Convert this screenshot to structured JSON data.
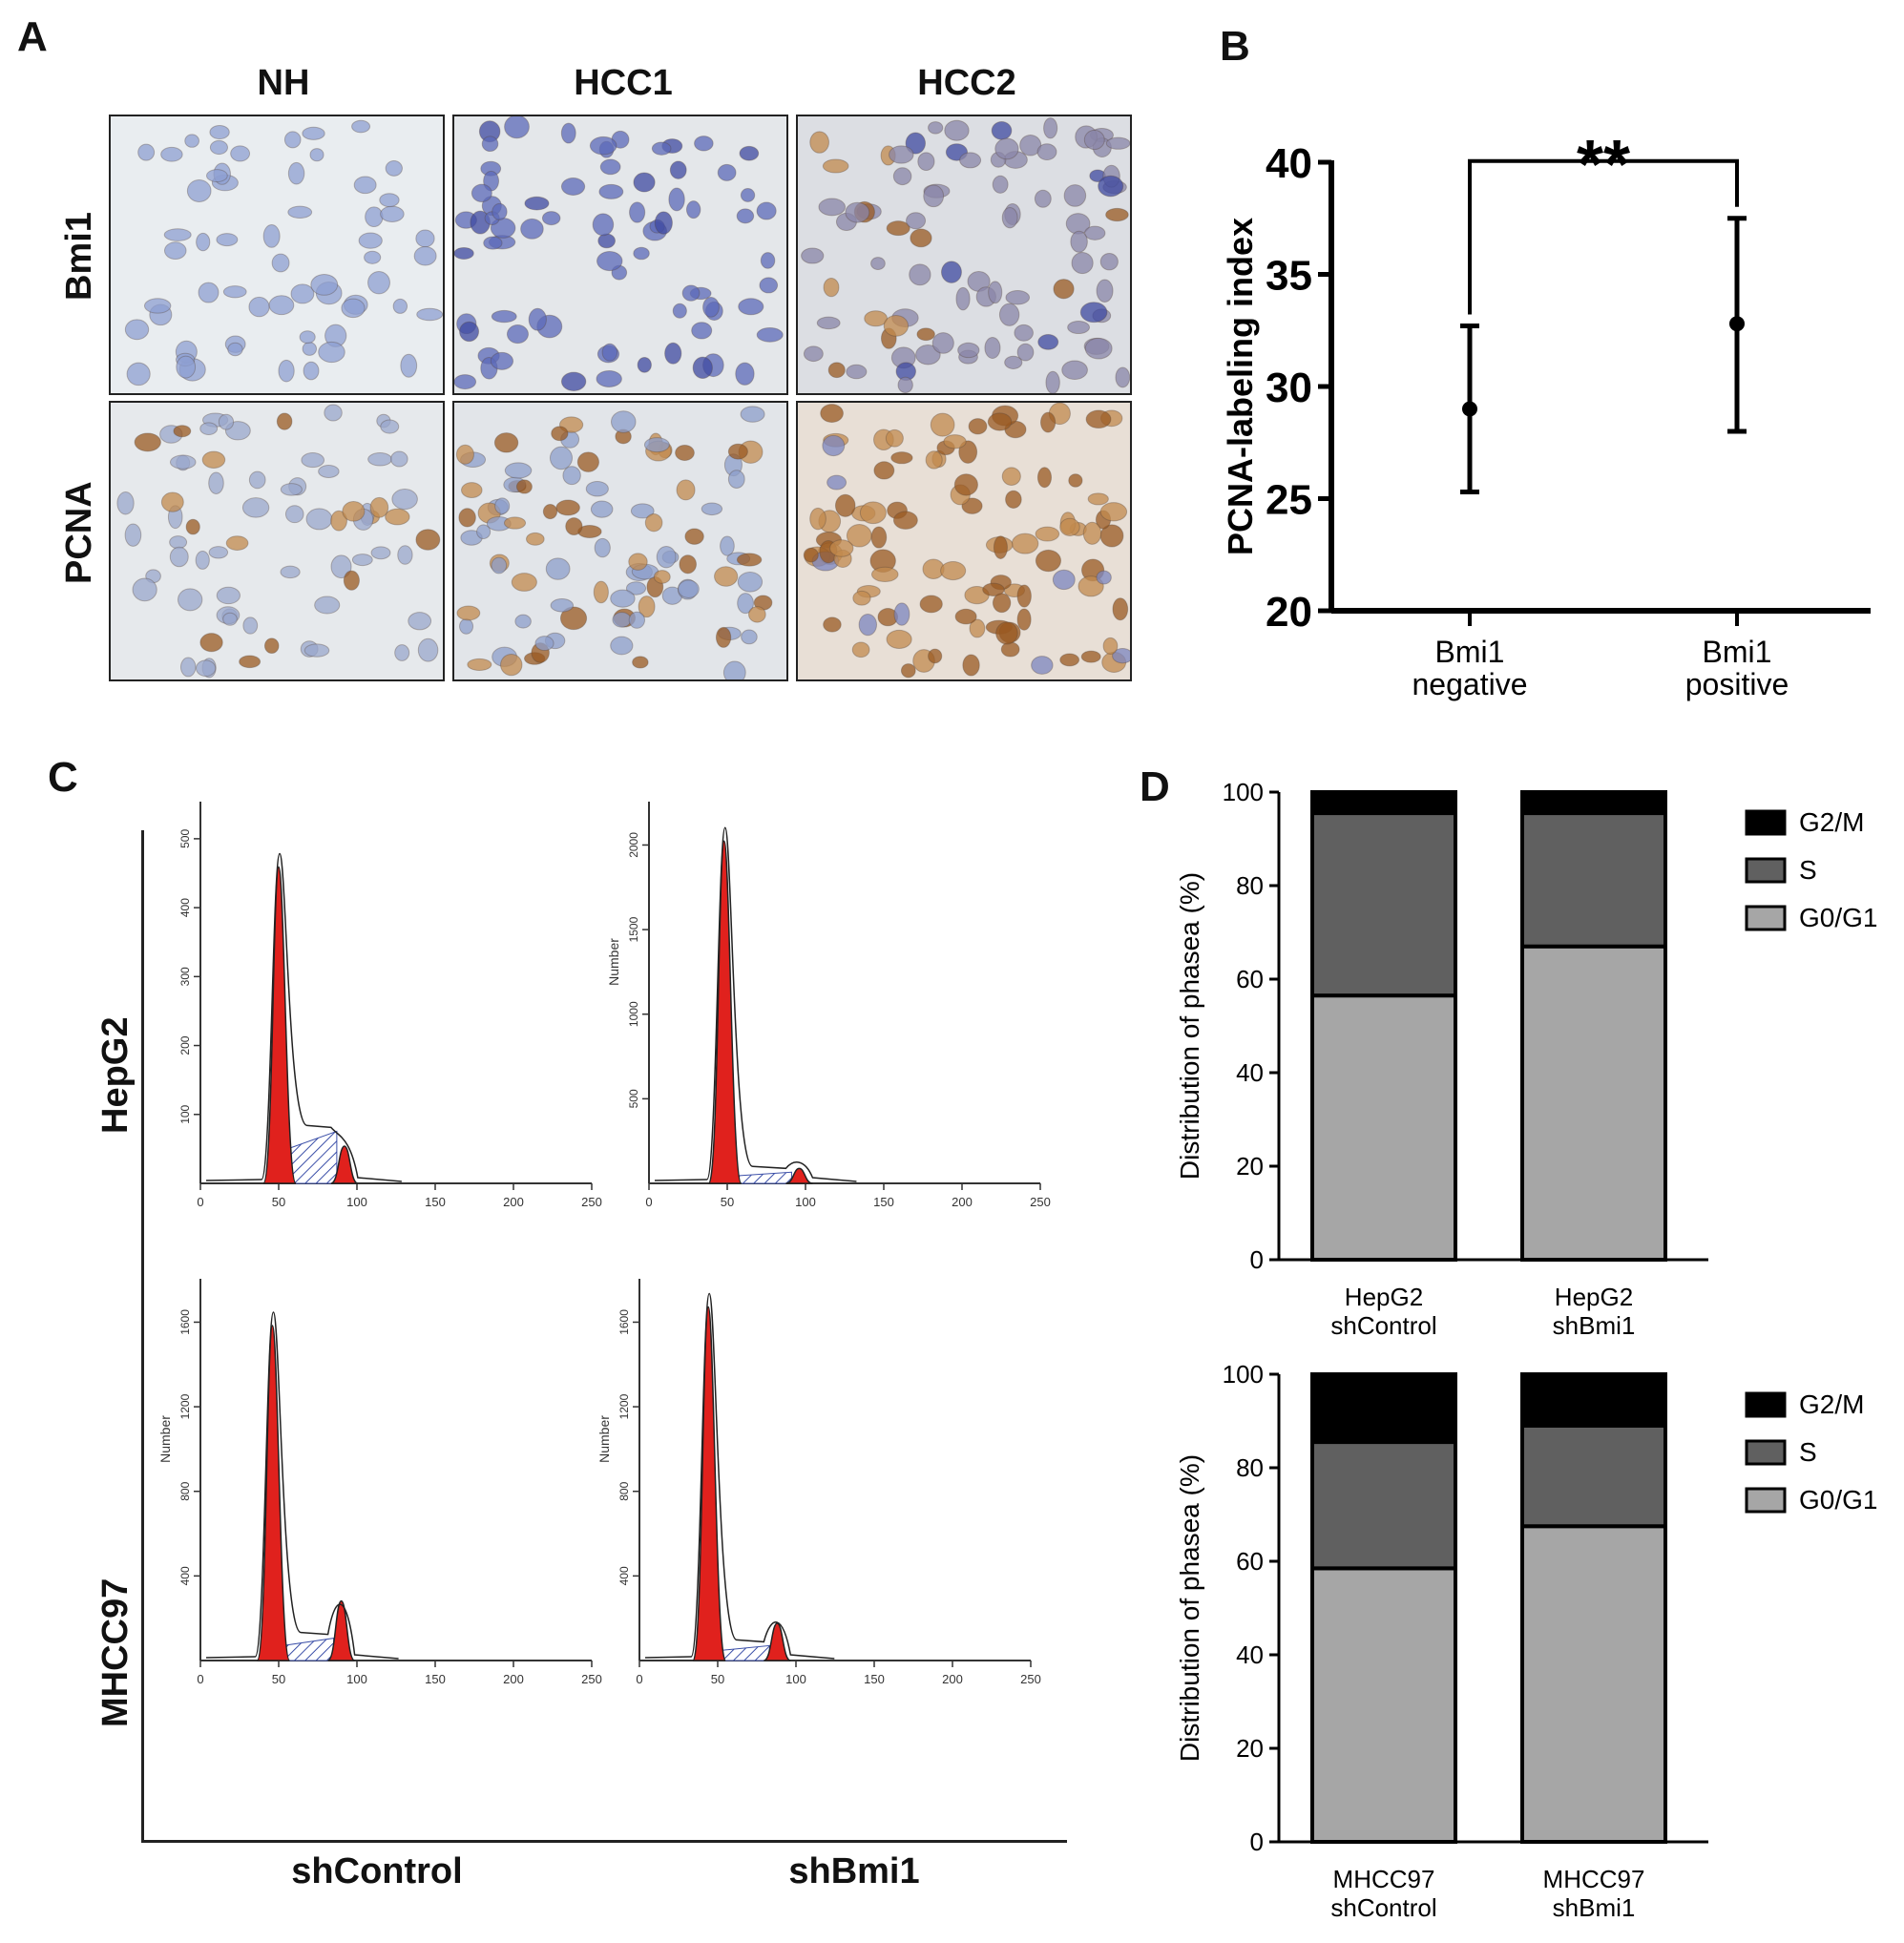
{
  "panels": {
    "a": "A",
    "b": "B",
    "c": "C",
    "d": "D"
  },
  "panel_a": {
    "columns": [
      "NH",
      "HCC1",
      "HCC2"
    ],
    "rows": [
      "Bmi1",
      "PCNA"
    ]
  },
  "panel_c": {
    "rows": [
      "HepG2",
      "MHCC97"
    ],
    "columns": [
      "shControl",
      "shBmi1"
    ],
    "y_axis_word": "Number",
    "x_ticks": [
      "0",
      "50",
      "100",
      "150",
      "200",
      "250"
    ],
    "y_ticks": {
      "hepg2_shcontrol": [
        "100",
        "200",
        "300",
        "400",
        "500"
      ],
      "hepg2_shbmi1": [
        "500",
        "1000",
        "1500",
        "2000"
      ],
      "mhcc97_shcontrol": [
        "400",
        "800",
        "1200",
        "1600"
      ],
      "mhcc97_shbmi1": [
        "400",
        "800",
        "1200",
        "1600"
      ]
    }
  },
  "colors": {
    "stain_blue": "#6b7fc4",
    "stain_brown": "#9a5a22",
    "histogram_red": "#e0211d",
    "hatch_blue": "#3b4fa8",
    "g0g1": "#a6a6a6",
    "s": "#606060",
    "g2m": "#000000"
  },
  "chart_data": [
    {
      "type": "scatter",
      "panel": "B",
      "ylabel": "PCNA-labeling index",
      "xlabel": "",
      "categories": [
        "Bmi1 negative",
        "Bmi1 positive"
      ],
      "category_lines": [
        [
          "Bmi1",
          "negative"
        ],
        [
          "Bmi1",
          "positive"
        ]
      ],
      "values": [
        29.0,
        32.8
      ],
      "error_low": [
        25.3,
        28.0
      ],
      "error_high": [
        32.7,
        37.5
      ],
      "ylim": [
        20,
        40
      ],
      "yticks": [
        "20",
        "25",
        "30",
        "35",
        "40"
      ],
      "annotation": "**",
      "grid": false
    },
    {
      "type": "bar",
      "stacked": true,
      "panel": "D-top",
      "ylabel": "Distribution of phasea (%)",
      "xlabel": "",
      "categories": [
        "HepG2 shControl",
        "HepG2 shBmi1"
      ],
      "category_lines": [
        [
          "HepG2",
          "shControl"
        ],
        [
          "HepG2",
          "shBmi1"
        ]
      ],
      "series": [
        {
          "name": "G0/G1",
          "values": [
            56.5,
            67.0
          ]
        },
        {
          "name": "S",
          "values": [
            39.0,
            28.5
          ]
        },
        {
          "name": "G2/M",
          "values": [
            4.5,
            4.5
          ]
        }
      ],
      "legend": [
        "G2/M",
        "S",
        "G0/G1"
      ],
      "legend_position": "right",
      "ylim": [
        0,
        100
      ],
      "yticks": [
        "0",
        "20",
        "40",
        "60",
        "80",
        "100"
      ],
      "grid": false
    },
    {
      "type": "bar",
      "stacked": true,
      "panel": "D-bottom",
      "ylabel": "Distribution of phasea (%)",
      "xlabel": "",
      "categories": [
        "MHCC97 shControl",
        "MHCC97 shBmi1"
      ],
      "category_lines": [
        [
          "MHCC97",
          "shControl"
        ],
        [
          "MHCC97",
          "shBmi1"
        ]
      ],
      "series": [
        {
          "name": "G0/G1",
          "values": [
            58.5,
            67.5
          ]
        },
        {
          "name": "S",
          "values": [
            27.0,
            21.5
          ]
        },
        {
          "name": "G2/M",
          "values": [
            14.5,
            11.0
          ]
        }
      ],
      "legend": [
        "G2/M",
        "S",
        "G0/G1"
      ],
      "legend_position": "right",
      "ylim": [
        0,
        100
      ],
      "yticks": [
        "0",
        "20",
        "40",
        "60",
        "80",
        "100"
      ],
      "grid": false
    }
  ]
}
